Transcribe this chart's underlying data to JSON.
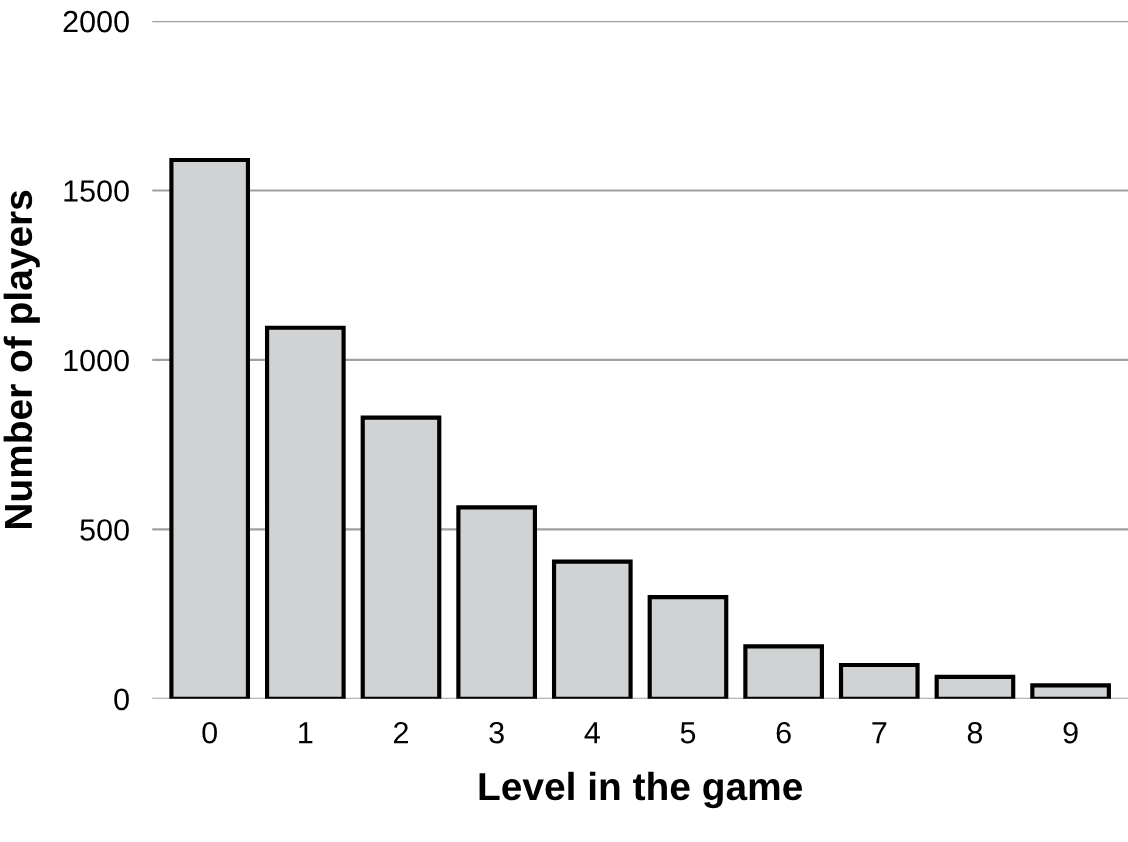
{
  "chart_data": {
    "type": "bar",
    "xlabel": "Level in the game",
    "ylabel": "Number of players",
    "categories": [
      "0",
      "1",
      "2",
      "3",
      "4",
      "5",
      "6",
      "7",
      "8",
      "9"
    ],
    "values": [
      1590,
      1095,
      830,
      565,
      405,
      300,
      155,
      100,
      65,
      40
    ],
    "color": "#d0d2d3",
    "ylim": [
      0,
      2000
    ],
    "yticks": [
      0,
      500,
      1000,
      1500,
      2000
    ],
    "grid": "y"
  }
}
